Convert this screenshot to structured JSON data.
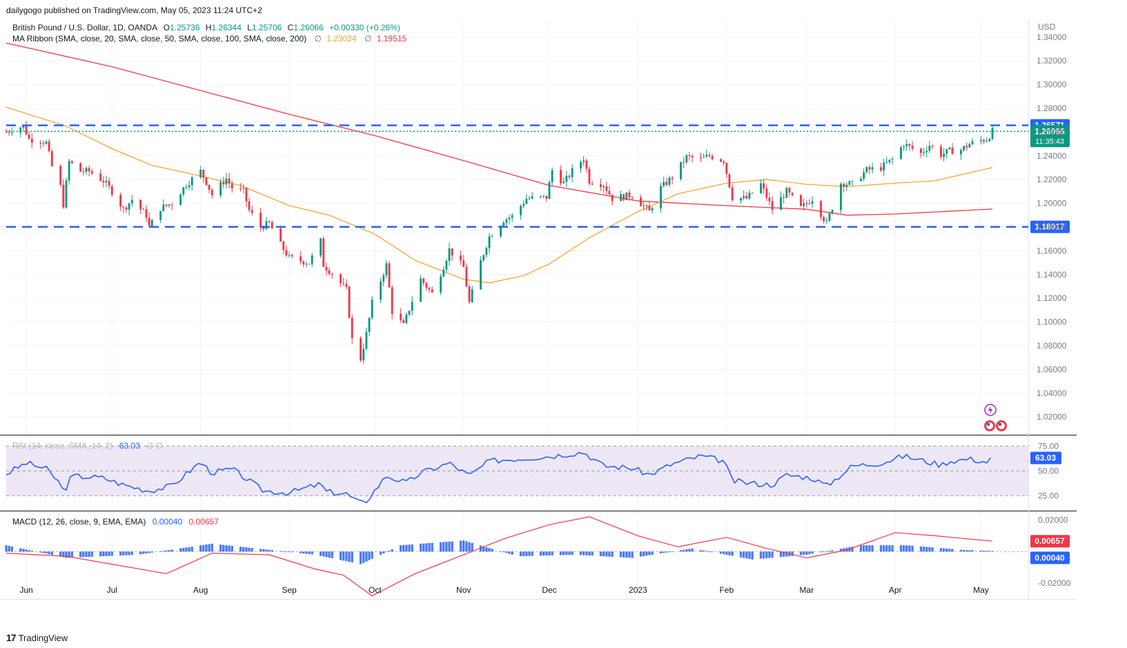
{
  "header": {
    "published_by": "dailygogo published on TradingView.com, May 05, 2023 11:24 UTC+2"
  },
  "legend": {
    "symbol": "British Pound / U.S. Dollar, 1D, OANDA",
    "open_label": "O",
    "open": "1.25736",
    "high_label": "H",
    "high": "1.26344",
    "low_label": "L",
    "low": "1.25706",
    "close_label": "C",
    "close": "1.26066",
    "change": "+0.00330 (+0.26%)",
    "ma_ribbon": "MA Ribbon (SMA, close, 20, SMA, close, 50, SMA, close, 100, SMA, close, 200)",
    "ma_symbol_1": "∅",
    "ma50_value": "1.23024",
    "ma_symbol_2": "∅",
    "ma200_value": "1.19515",
    "rsi_label": "RSI (14, close, SMA, 14, 2)",
    "rsi_value": "63.03",
    "rsi_extra": "∅  ∅",
    "macd_label": "MACD (12, 26, close, 9, EMA, EMA)",
    "macd_value": "0.00040",
    "signal_value": "0.00657"
  },
  "footer": {
    "logo_text": "TradingView",
    "logo_mark": "17"
  },
  "colors": {
    "up": "#089981",
    "down": "#f23645",
    "ma50": "#f7a530",
    "ma200": "#f23645",
    "level": "#2962ff",
    "rsi": "#2962ff",
    "rsi_band": "#ede7f6",
    "macd": "#2962ff",
    "signal": "#f23645",
    "grid": "#f0f3fa"
  },
  "chart_data": [
    {
      "type": "candlestick",
      "currency": "USD",
      "y_ticks": [
        "1.34000",
        "1.32000",
        "1.30000",
        "1.28000",
        "1.26000",
        "1.24000",
        "1.22000",
        "1.20000",
        "1.18000",
        "1.16000",
        "1.14000",
        "1.12000",
        "1.10000",
        "1.08000",
        "1.06000",
        "1.04000",
        "1.02000"
      ],
      "ylim": [
        1.005,
        1.355
      ],
      "x_labels": [
        "Jun",
        "Jul",
        "Aug",
        "Sep",
        "Oct",
        "Nov",
        "Dec",
        "2023",
        "Feb",
        "Mar",
        "Apr",
        "May"
      ],
      "x_label_dates": [
        "2022-06-01",
        "2022-07-01",
        "2022-08-01",
        "2022-09-01",
        "2022-10-01",
        "2022-11-01",
        "2022-12-01",
        "2023-01-01",
        "2023-02-01",
        "2023-03-01",
        "2023-04-01",
        "2023-05-01"
      ],
      "last_price": "1.26066",
      "countdown": "11:35:43",
      "horizontal_levels": [
        {
          "value": 1.26571,
          "label": "1.26571"
        },
        {
          "value": 1.18017,
          "label": "1.18017"
        }
      ],
      "close_path": [
        [
          "2022-05-25",
          1.26
        ],
        [
          "2022-05-27",
          1.262
        ],
        [
          "2022-05-31",
          1.265
        ],
        [
          "2022-06-02",
          1.254
        ],
        [
          "2022-06-06",
          1.253
        ],
        [
          "2022-06-08",
          1.251
        ],
        [
          "2022-06-10",
          1.231
        ],
        [
          "2022-06-13",
          1.214
        ],
        [
          "2022-06-14",
          1.199
        ],
        [
          "2022-06-16",
          1.235
        ],
        [
          "2022-06-20",
          1.227
        ],
        [
          "2022-06-23",
          1.227
        ],
        [
          "2022-06-28",
          1.219
        ],
        [
          "2022-07-01",
          1.21
        ],
        [
          "2022-07-05",
          1.195
        ],
        [
          "2022-07-08",
          1.203
        ],
        [
          "2022-07-13",
          1.19
        ],
        [
          "2022-07-14",
          1.18
        ],
        [
          "2022-07-18",
          1.196
        ],
        [
          "2022-07-22",
          1.2
        ],
        [
          "2022-07-27",
          1.216
        ],
        [
          "2022-08-01",
          1.227
        ],
        [
          "2022-08-03",
          1.218
        ],
        [
          "2022-08-05",
          1.207
        ],
        [
          "2022-08-10",
          1.221
        ],
        [
          "2022-08-12",
          1.213
        ],
        [
          "2022-08-16",
          1.21
        ],
        [
          "2022-08-18",
          1.194
        ],
        [
          "2022-08-22",
          1.18
        ],
        [
          "2022-08-25",
          1.183
        ],
        [
          "2022-08-29",
          1.165
        ],
        [
          "2022-09-01",
          1.154
        ],
        [
          "2022-09-06",
          1.151
        ],
        [
          "2022-09-08",
          1.15
        ],
        [
          "2022-09-12",
          1.168
        ],
        [
          "2022-09-13",
          1.148
        ],
        [
          "2022-09-16",
          1.141
        ],
        [
          "2022-09-21",
          1.127
        ],
        [
          "2022-09-23",
          1.085
        ],
        [
          "2022-09-26",
          1.069
        ],
        [
          "2022-09-28",
          1.09
        ],
        [
          "2022-09-30",
          1.116
        ],
        [
          "2022-10-05",
          1.148
        ],
        [
          "2022-10-07",
          1.109
        ],
        [
          "2022-10-11",
          1.097
        ],
        [
          "2022-10-14",
          1.118
        ],
        [
          "2022-10-17",
          1.136
        ],
        [
          "2022-10-21",
          1.124
        ],
        [
          "2022-10-25",
          1.147
        ],
        [
          "2022-10-27",
          1.161
        ],
        [
          "2022-11-01",
          1.146
        ],
        [
          "2022-11-03",
          1.116
        ],
        [
          "2022-11-07",
          1.151
        ],
        [
          "2022-11-10",
          1.172
        ],
        [
          "2022-11-15",
          1.186
        ],
        [
          "2022-11-18",
          1.189
        ],
        [
          "2022-11-23",
          1.204
        ],
        [
          "2022-11-30",
          1.205
        ],
        [
          "2022-12-02",
          1.228
        ],
        [
          "2022-12-06",
          1.217
        ],
        [
          "2022-12-09",
          1.227
        ],
        [
          "2022-12-13",
          1.238
        ],
        [
          "2022-12-15",
          1.219
        ],
        [
          "2022-12-20",
          1.216
        ],
        [
          "2022-12-23",
          1.204
        ],
        [
          "2022-12-30",
          1.207
        ],
        [
          "2023-01-05",
          1.193
        ],
        [
          "2023-01-09",
          1.213
        ],
        [
          "2023-01-13",
          1.222
        ],
        [
          "2023-01-18",
          1.239
        ],
        [
          "2023-01-23",
          1.237
        ],
        [
          "2023-01-26",
          1.24
        ],
        [
          "2023-01-31",
          1.236
        ],
        [
          "2023-02-03",
          1.205
        ],
        [
          "2023-02-08",
          1.204
        ],
        [
          "2023-02-13",
          1.216
        ],
        [
          "2023-02-17",
          1.195
        ],
        [
          "2023-02-22",
          1.21
        ],
        [
          "2023-02-27",
          1.196
        ],
        [
          "2023-03-03",
          1.204
        ],
        [
          "2023-03-08",
          1.183
        ],
        [
          "2023-03-13",
          1.217
        ],
        [
          "2023-03-17",
          1.216
        ],
        [
          "2023-03-22",
          1.228
        ],
        [
          "2023-03-27",
          1.23
        ],
        [
          "2023-03-31",
          1.237
        ],
        [
          "2023-04-04",
          1.25
        ],
        [
          "2023-04-10",
          1.242
        ],
        [
          "2023-04-13",
          1.249
        ],
        [
          "2023-04-17",
          1.241
        ],
        [
          "2023-04-20",
          1.244
        ],
        [
          "2023-04-24",
          1.245
        ],
        [
          "2023-04-27",
          1.25
        ],
        [
          "2023-05-01",
          1.253
        ],
        [
          "2023-05-03",
          1.254
        ],
        [
          "2023-05-04",
          1.257
        ],
        [
          "2023-05-05",
          1.2607
        ]
      ],
      "ma50": [
        [
          "2022-05-25",
          1.281
        ],
        [
          "2022-06-15",
          1.265
        ],
        [
          "2022-07-01",
          1.246
        ],
        [
          "2022-07-15",
          1.232
        ],
        [
          "2022-08-01",
          1.223
        ],
        [
          "2022-08-15",
          1.215
        ],
        [
          "2022-09-01",
          1.198
        ],
        [
          "2022-09-15",
          1.19
        ],
        [
          "2022-10-01",
          1.174
        ],
        [
          "2022-10-15",
          1.152
        ],
        [
          "2022-11-01",
          1.136
        ],
        [
          "2022-11-10",
          1.133
        ],
        [
          "2022-11-22",
          1.139
        ],
        [
          "2022-12-01",
          1.149
        ],
        [
          "2022-12-15",
          1.171
        ],
        [
          "2023-01-01",
          1.193
        ],
        [
          "2023-01-15",
          1.208
        ],
        [
          "2023-02-01",
          1.217
        ],
        [
          "2023-02-15",
          1.22
        ],
        [
          "2023-03-01",
          1.216
        ],
        [
          "2023-03-15",
          1.214
        ],
        [
          "2023-04-01",
          1.217
        ],
        [
          "2023-04-15",
          1.219
        ],
        [
          "2023-05-05",
          1.2302
        ]
      ],
      "ma200": [
        [
          "2022-05-25",
          1.335
        ],
        [
          "2022-07-01",
          1.315
        ],
        [
          "2022-08-01",
          1.295
        ],
        [
          "2022-09-01",
          1.275
        ],
        [
          "2022-10-01",
          1.257
        ],
        [
          "2022-11-01",
          1.236
        ],
        [
          "2022-12-01",
          1.215
        ],
        [
          "2023-01-01",
          1.202
        ],
        [
          "2023-02-01",
          1.198
        ],
        [
          "2023-03-01",
          1.195
        ],
        [
          "2023-03-15",
          1.19
        ],
        [
          "2023-04-01",
          1.191
        ],
        [
          "2023-05-05",
          1.1952
        ]
      ]
    },
    {
      "type": "line",
      "name": "RSI",
      "y_ticks": [
        "75.00",
        "50.00",
        "25.00"
      ],
      "ylim": [
        10,
        85
      ],
      "last_value": "63.03",
      "values": [
        [
          "2022-05-25",
          47
        ],
        [
          "2022-06-01",
          58
        ],
        [
          "2022-06-08",
          52
        ],
        [
          "2022-06-13",
          37
        ],
        [
          "2022-06-14",
          28
        ],
        [
          "2022-06-17",
          45
        ],
        [
          "2022-06-28",
          43
        ],
        [
          "2022-07-05",
          36
        ],
        [
          "2022-07-14",
          30
        ],
        [
          "2022-07-22",
          35
        ],
        [
          "2022-08-01",
          59
        ],
        [
          "2022-08-05",
          48
        ],
        [
          "2022-08-12",
          52
        ],
        [
          "2022-08-18",
          40
        ],
        [
          "2022-08-23",
          30
        ],
        [
          "2022-09-01",
          28
        ],
        [
          "2022-09-12",
          37
        ],
        [
          "2022-09-14",
          29
        ],
        [
          "2022-09-21",
          27
        ],
        [
          "2022-09-26",
          17
        ],
        [
          "2022-09-28",
          20
        ],
        [
          "2022-10-05",
          45
        ],
        [
          "2022-10-12",
          38
        ],
        [
          "2022-10-17",
          48
        ],
        [
          "2022-10-27",
          58
        ],
        [
          "2022-11-03",
          45
        ],
        [
          "2022-11-10",
          60
        ],
        [
          "2022-11-23",
          63
        ],
        [
          "2022-12-02",
          65
        ],
        [
          "2022-12-13",
          69
        ],
        [
          "2022-12-20",
          55
        ],
        [
          "2022-12-30",
          53
        ],
        [
          "2023-01-05",
          46
        ],
        [
          "2023-01-13",
          57
        ],
        [
          "2023-01-23",
          65
        ],
        [
          "2023-01-31",
          60
        ],
        [
          "2023-02-03",
          40
        ],
        [
          "2023-02-08",
          38
        ],
        [
          "2023-02-17",
          36
        ],
        [
          "2023-02-22",
          46
        ],
        [
          "2023-03-03",
          43
        ],
        [
          "2023-03-08",
          35
        ],
        [
          "2023-03-17",
          55
        ],
        [
          "2023-03-27",
          58
        ],
        [
          "2023-04-04",
          65
        ],
        [
          "2023-04-17",
          56
        ],
        [
          "2023-04-20",
          60
        ],
        [
          "2023-04-27",
          62
        ],
        [
          "2023-05-03",
          59
        ],
        [
          "2023-05-05",
          63.03
        ]
      ]
    },
    {
      "type": "bar+line",
      "name": "MACD",
      "y_ticks": [
        "0.02000",
        "-0.02000"
      ],
      "ylim": [
        -0.03,
        0.025
      ],
      "last_signal": "0.00657",
      "last_macd": "0.00040",
      "signal": [
        [
          "2022-05-25",
          -0.001
        ],
        [
          "2022-06-15",
          -0.003
        ],
        [
          "2022-07-01",
          -0.008
        ],
        [
          "2022-07-20",
          -0.014
        ],
        [
          "2022-08-05",
          -0.001
        ],
        [
          "2022-08-25",
          -0.002
        ],
        [
          "2022-09-10",
          -0.011
        ],
        [
          "2022-09-20",
          -0.015
        ],
        [
          "2022-09-30",
          -0.028
        ],
        [
          "2022-10-15",
          -0.014
        ],
        [
          "2022-11-01",
          -0.002
        ],
        [
          "2022-11-15",
          0.008
        ],
        [
          "2022-12-01",
          0.017
        ],
        [
          "2022-12-15",
          0.022
        ],
        [
          "2023-01-01",
          0.01
        ],
        [
          "2023-01-15",
          0.003
        ],
        [
          "2023-02-01",
          0.009
        ],
        [
          "2023-02-15",
          0.002
        ],
        [
          "2023-03-01",
          -0.004
        ],
        [
          "2023-03-15",
          0.001
        ],
        [
          "2023-04-01",
          0.012
        ],
        [
          "2023-04-15",
          0.01
        ],
        [
          "2023-05-05",
          0.00657
        ]
      ],
      "histogram": [
        [
          "2022-05-25",
          0.004
        ],
        [
          "2022-06-15",
          -0.004
        ],
        [
          "2022-07-10",
          -0.002
        ],
        [
          "2022-08-05",
          0.005
        ],
        [
          "2022-09-10",
          -0.002
        ],
        [
          "2022-09-26",
          -0.008
        ],
        [
          "2022-10-10",
          0.004
        ],
        [
          "2022-11-01",
          0.007
        ],
        [
          "2022-11-20",
          -0.003
        ],
        [
          "2022-12-10",
          -0.002
        ],
        [
          "2022-12-30",
          -0.004
        ],
        [
          "2023-01-20",
          0.002
        ],
        [
          "2023-02-10",
          -0.005
        ],
        [
          "2023-03-01",
          -0.002
        ],
        [
          "2023-03-20",
          0.004
        ],
        [
          "2023-04-05",
          0.004
        ],
        [
          "2023-04-25",
          0.001
        ],
        [
          "2023-05-05",
          0.0004
        ]
      ]
    }
  ]
}
